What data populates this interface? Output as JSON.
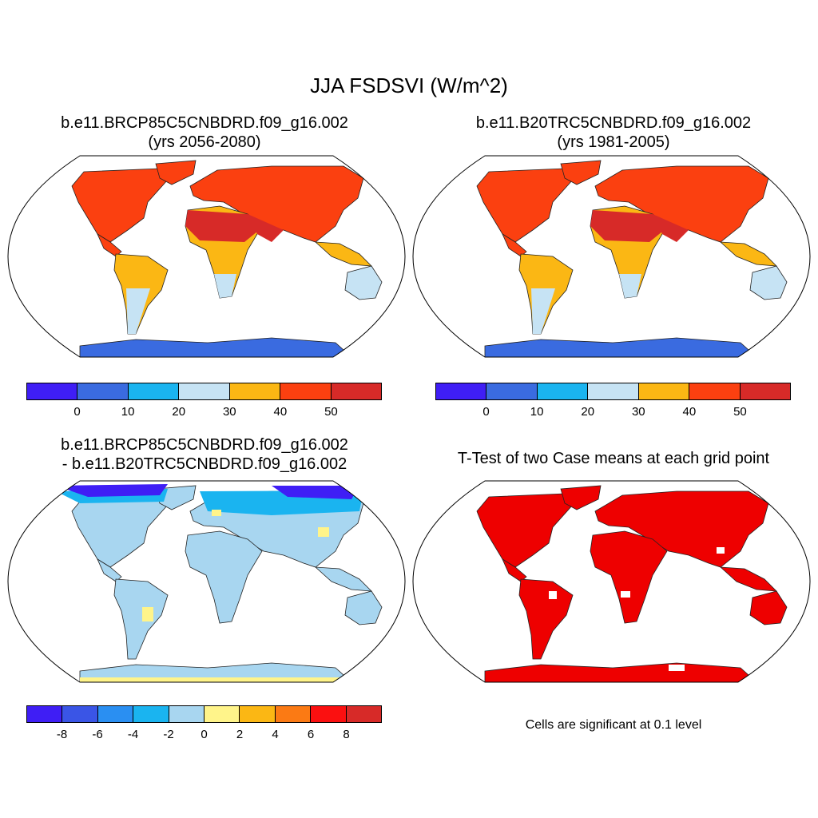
{
  "main_title": "JJA FSDSVI (W/m^2)",
  "panels": [
    {
      "title_line1": "b.e11.BRCP85C5CNBDRD.f09_g16.002",
      "title_line2": "(yrs 2056-2080)"
    },
    {
      "title_line1": "b.e11.B20TRC5CNBDRD.f09_g16.002",
      "title_line2": "(yrs 1981-2005)"
    },
    {
      "title_line1": "b.e11.BRCP85C5CNBDRD.f09_g16.002",
      "title_line2": "- b.e11.B20TRC5CNBDRD.f09_g16.002"
    },
    {
      "title_line1": "T-Test of two Case means at each grid point"
    }
  ],
  "significance_note": "Cells are significant at 0.1 level",
  "colorbars": {
    "climatology": {
      "colors": [
        "#3f1ef5",
        "#3a6be0",
        "#1ab4f0",
        "#c6e3f4",
        "#fbb714",
        "#fb4010",
        "#d72a28"
      ],
      "ticks": [
        "0",
        "10",
        "20",
        "30",
        "40",
        "50"
      ]
    },
    "difference": {
      "colors": [
        "#3f1ef5",
        "#3a55e6",
        "#2a8ff2",
        "#1ab4f0",
        "#a8d6f0",
        "#fff48a",
        "#fbb714",
        "#fb7a14",
        "#fb1010",
        "#d72a28"
      ],
      "ticks": [
        "-8",
        "-6",
        "-4",
        "-2",
        "0",
        "2",
        "4",
        "6",
        "8"
      ]
    }
  },
  "map_fills": {
    "panel1": {
      "northern_land": "#fb4010",
      "subtropics": "#d72a28",
      "tropics": "#fbb714",
      "southern_land": "#c6e3f4",
      "antarctica": "#3a6be0"
    },
    "panel2": {
      "northern_land": "#fb4010",
      "subtropics": "#d72a28",
      "tropics": "#fbb714",
      "southern_land": "#c6e3f4",
      "antarctica": "#3a6be0"
    },
    "panel3": {
      "land": "#a8d6f0",
      "high_latitude": "#1ab4f0",
      "arctic": "#3f1ef5",
      "patches": "#fff48a",
      "antarctica_edge": "#fff48a"
    },
    "panel4": {
      "significant": "#ee0000"
    }
  }
}
